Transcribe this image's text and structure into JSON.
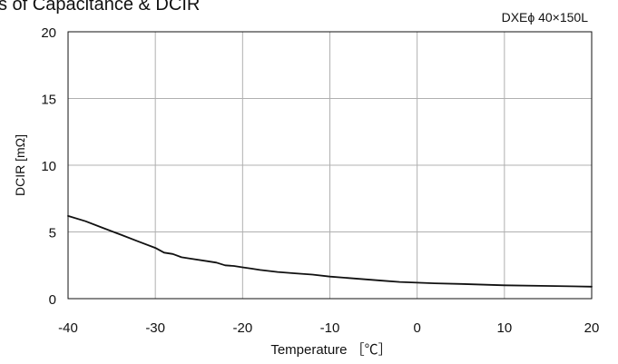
{
  "chart_data": {
    "type": "line",
    "title": "s of Capacitance & DCIR",
    "subtitle": "DXEϕ 40×150L",
    "xlabel": "Temperature ［℃］",
    "ylabel": "DCIR [mΩ]",
    "xlim": [
      -40,
      20
    ],
    "ylim": [
      0,
      20
    ],
    "x_ticks": [
      "-40",
      "-30",
      "-20",
      "-10",
      "0",
      "10",
      "20"
    ],
    "y_ticks": [
      "0",
      "5",
      "10",
      "15",
      "20"
    ],
    "grid": true,
    "legend": "none",
    "series": [
      {
        "x": [
          -40,
          -38,
          -36,
          -34,
          -32,
          -30,
          -29,
          -28,
          -27,
          -26,
          -24,
          -23,
          -22,
          -21,
          -20,
          -19,
          -18,
          -16,
          -14,
          -12,
          -10,
          -8,
          -6,
          -4,
          -2,
          0,
          2,
          5,
          10,
          15,
          20
        ],
        "values": [
          6.2,
          5.8,
          5.3,
          4.8,
          4.3,
          3.8,
          3.45,
          3.35,
          3.1,
          3.0,
          2.8,
          2.7,
          2.5,
          2.45,
          2.35,
          2.25,
          2.15,
          2.0,
          1.9,
          1.8,
          1.65,
          1.55,
          1.45,
          1.35,
          1.25,
          1.2,
          1.15,
          1.1,
          1.0,
          0.95,
          0.9
        ]
      }
    ],
    "line_color": "#111111",
    "grid_color": "#b0b0b0"
  }
}
